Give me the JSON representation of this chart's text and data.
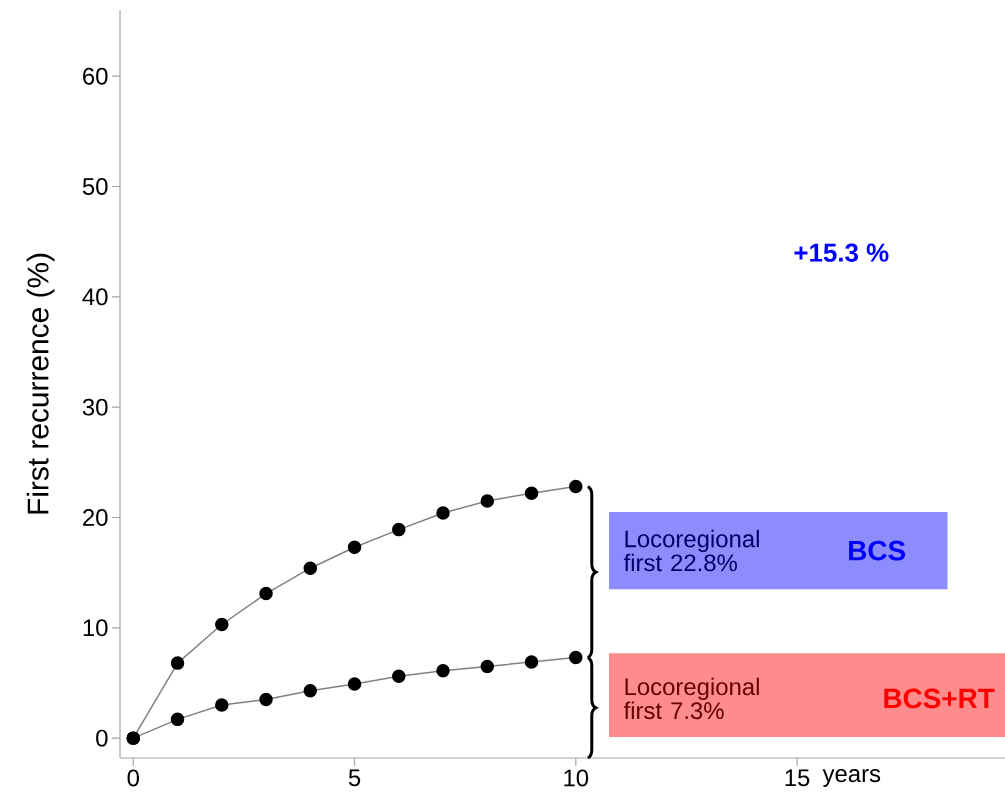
{
  "chart_data": {
    "type": "line",
    "ylabel": "First recurrence (%)",
    "xlabel": "years",
    "x": [
      0,
      1,
      2,
      3,
      4,
      5,
      6,
      7,
      8,
      9,
      10
    ],
    "series": [
      {
        "name": "BCS",
        "color": "#000000",
        "values": [
          0,
          6.8,
          10.3,
          13.1,
          15.4,
          17.3,
          18.9,
          20.4,
          21.5,
          22.2,
          22.8
        ]
      },
      {
        "name": "BCS+RT",
        "color": "#000000",
        "values": [
          0,
          1.7,
          3.0,
          3.5,
          4.3,
          4.9,
          5.6,
          6.1,
          6.5,
          6.9,
          7.3
        ]
      }
    ],
    "xlim": [
      -0.3,
      19.7
    ],
    "ylim": [
      -1.8,
      66
    ],
    "xticks": [
      0,
      5,
      10,
      15
    ],
    "yticks": [
      0,
      10,
      20,
      30,
      40,
      50,
      60
    ],
    "marker": "circle",
    "grid": false,
    "annotations": [
      "+15.3 %",
      "Locoregional first 22.8%",
      "Locoregional first  7.3%"
    ]
  }
}
